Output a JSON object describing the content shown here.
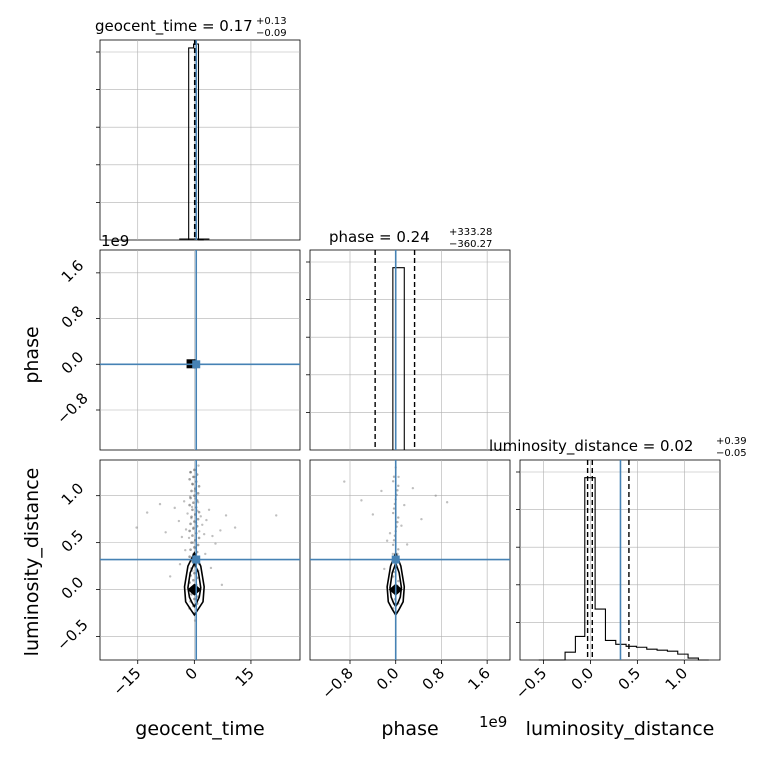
{
  "chart_data": {
    "type": "corner",
    "colors": {
      "truth": "#4682b4",
      "hist": "#000000",
      "grid": "#b0b0b0",
      "points": "#808080"
    },
    "parameters": [
      "geocent_time",
      "phase",
      "luminosity_distance"
    ],
    "axes_labels": {
      "x": [
        "geocent_time",
        "phase",
        "luminosity_distance"
      ],
      "y": [
        "phase",
        "luminosity_distance"
      ]
    },
    "titles": [
      {
        "main": "geocent_time = 0.17",
        "plus": "+0.13",
        "minus": "−0.09"
      },
      {
        "main": "phase = 0.24",
        "plus": "+333.28",
        "minus": "−360.27"
      },
      {
        "main": "luminosity_distance = 0.02",
        "plus": "+0.39",
        "minus": "−0.05"
      }
    ],
    "offset_texts": [
      "1e9",
      "1e9"
    ],
    "ticks": {
      "geocent_time": {
        "range": [
          -25,
          28
        ],
        "values": [
          -15,
          0,
          15
        ],
        "labels": [
          "−15",
          "0",
          "15"
        ]
      },
      "phase": {
        "range": [
          -1.5,
          2.0
        ],
        "values": [
          -0.8,
          0.0,
          0.8,
          1.6
        ],
        "labels": [
          "−0.8",
          "0.0",
          "0.8",
          "1.6"
        ]
      },
      "luminosity_distance": {
        "range": [
          -0.75,
          1.38
        ],
        "values": [
          -0.5,
          0.0,
          0.5,
          1.0
        ],
        "labels": [
          "−0.5",
          "0.0",
          "0.5",
          "1.0"
        ]
      }
    },
    "truths": {
      "geocent_time": 0.5,
      "phase": 0.0,
      "luminosity_distance": 0.32
    },
    "quantile_lines": {
      "geocent_time": [
        0.08,
        0.17,
        0.3
      ],
      "phase": [
        -0.36,
        0.0,
        0.33
      ],
      "luminosity_distance": [
        -0.03,
        0.02,
        0.41
      ]
    },
    "hist_geocent_time": {
      "edges": [
        -1.5,
        -0.2,
        1.1,
        2.5
      ],
      "heights": [
        0.98,
        1.0,
        0.0
      ],
      "base_edges": [
        -4.0,
        4.0
      ]
    },
    "hist_phase": {
      "edges": [
        -0.05,
        0.05,
        0.15
      ],
      "heights": [
        0.93,
        0.93,
        0.0
      ],
      "base_edges": [
        -0.3,
        0.3
      ]
    },
    "hist_luminosity_distance": {
      "edges": [
        -0.55,
        -0.27,
        -0.16,
        -0.06,
        0.05,
        0.16,
        0.27,
        0.38,
        0.49,
        0.6,
        0.71,
        0.82,
        0.93,
        1.04,
        1.15,
        1.26
      ],
      "heights": [
        0.0,
        0.04,
        0.12,
        0.93,
        0.26,
        0.1,
        0.08,
        0.07,
        0.065,
        0.055,
        0.05,
        0.045,
        0.03,
        0.01,
        0.0
      ]
    },
    "scatter_geocent_luminosity": {
      "x": [
        -12.5,
        -9.1,
        -7.6,
        -5.2,
        -4.1,
        -3.3,
        -2.7,
        -2.2,
        -1.8,
        -1.4,
        -1.1,
        -0.8,
        -0.6,
        -0.4,
        -0.2,
        0.1,
        0.3,
        0.5,
        0.8,
        1.0,
        1.3,
        1.7,
        2.1,
        2.6,
        3.2,
        3.9,
        4.8,
        5.6,
        6.9,
        8.4,
        10.8,
        21.7,
        -15.3,
        -6.4,
        -3.8,
        -2.4,
        2.9,
        4.4,
        7.3,
        -1.0,
        1.1,
        0.0,
        -0.5,
        0.6,
        -0.1,
        0.2,
        -0.3,
        0.4
      ],
      "y": [
        0.82,
        0.91,
        0.61,
        0.87,
        0.73,
        0.56,
        0.94,
        0.64,
        0.81,
        0.55,
        0.99,
        0.76,
        0.88,
        1.12,
        0.66,
        1.05,
        0.97,
        0.71,
        0.84,
        0.93,
        0.62,
        0.78,
        0.69,
        0.59,
        0.74,
        0.85,
        0.57,
        0.49,
        0.63,
        0.79,
        0.66,
        0.79,
        0.66,
        0.14,
        0.27,
        0.42,
        0.38,
        0.23,
        0.05,
        1.25,
        1.32,
        1.2,
        0.2,
        -0.12,
        -0.25,
        -0.33,
        0.5,
        0.44
      ],
      "contours": [
        {
          "x": [
            0.0,
            1.1,
            1.7,
            1.3,
            0.6,
            0.0,
            -0.6,
            -1.3,
            -1.7,
            -1.1,
            0.0
          ],
          "y": [
            0.28,
            0.18,
            0.02,
            -0.08,
            -0.14,
            -0.18,
            -0.14,
            -0.08,
            0.02,
            0.18,
            0.28
          ]
        },
        {
          "x": [
            0.0,
            1.7,
            2.6,
            2.3,
            1.0,
            0.0,
            -1.0,
            -2.3,
            -2.6,
            -1.7,
            0.0
          ],
          "y": [
            0.39,
            0.25,
            0.03,
            -0.13,
            -0.21,
            -0.27,
            -0.21,
            -0.13,
            0.03,
            0.25,
            0.39
          ]
        }
      ]
    },
    "scatter_phase_luminosity": {
      "x": [
        -0.9,
        -0.6,
        -0.4,
        -0.25,
        -0.1,
        0.05,
        0.15,
        0.3,
        0.45,
        0.7,
        0.9,
        -0.15,
        0.2,
        0.0,
        -0.05,
        0.1,
        0.05,
        -0.2
      ],
      "y": [
        1.15,
        0.95,
        0.8,
        1.05,
        0.6,
        1.2,
        0.9,
        1.08,
        0.75,
        1.0,
        0.93,
        0.52,
        0.48,
        1.3,
        0.38,
        0.68,
        -0.15,
        0.22
      ],
      "contours": [
        {
          "x": [
            0.0,
            0.06,
            0.1,
            0.08,
            0.04,
            0.0,
            -0.04,
            -0.08,
            -0.1,
            -0.06,
            0.0
          ],
          "y": [
            0.28,
            0.18,
            0.02,
            -0.08,
            -0.14,
            -0.18,
            -0.14,
            -0.08,
            0.02,
            0.18,
            0.28
          ]
        },
        {
          "x": [
            0.0,
            0.09,
            0.15,
            0.13,
            0.06,
            0.0,
            -0.06,
            -0.13,
            -0.15,
            -0.09,
            0.0
          ],
          "y": [
            0.39,
            0.25,
            0.03,
            -0.13,
            -0.21,
            -0.27,
            -0.21,
            -0.13,
            0.03,
            0.25,
            0.39
          ]
        }
      ]
    },
    "scatter_geocent_phase": {
      "x": [
        -0.8,
        -0.3,
        0.2,
        0.6,
        1.0,
        -0.5,
        0.4
      ],
      "y": [
        0.02,
        -0.01,
        0.03,
        0.0,
        -0.02,
        0.05,
        -0.04
      ]
    },
    "grid": true
  }
}
